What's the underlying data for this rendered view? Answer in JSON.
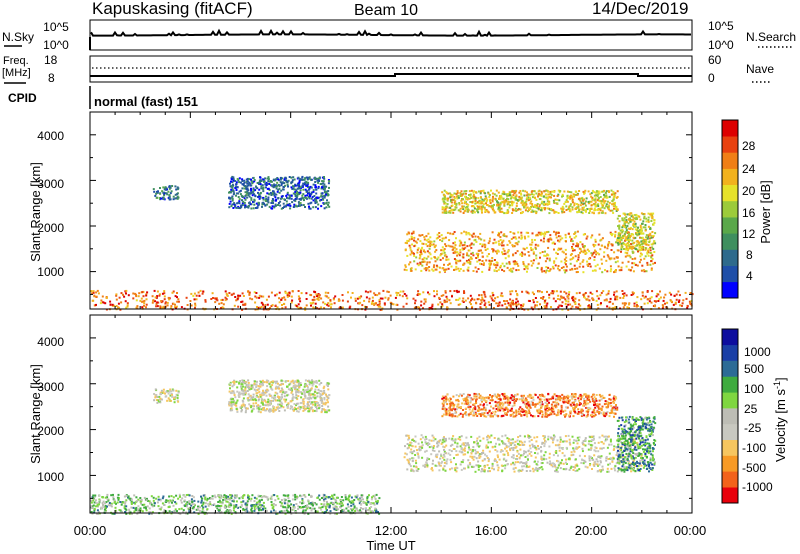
{
  "header": {
    "station": "Kapuskasing (fitACF)",
    "beam": "Beam 10",
    "date": "14/Dec/2019"
  },
  "strips": {
    "nsky_label": "N.Sky",
    "nsky_ticks": [
      "10^5",
      "10^0"
    ],
    "nsearch_label": "N.Search",
    "nsearch_ticks": [
      "10^5",
      "10^0"
    ],
    "freq_label": "Freq.",
    "freq_unit": "[MHz]",
    "freq_ticks": [
      "18",
      "8"
    ],
    "nave_label": "Nave",
    "nave_ticks": [
      "60",
      "0"
    ],
    "cpid_label": "CPID",
    "cpid_text": "normal (fast) 151"
  },
  "chart_data": [
    {
      "type": "heatmap",
      "panel": "power",
      "ylabel": "Slant Range [km]",
      "yticks": [
        "4000",
        "3000",
        "2000",
        "1000"
      ],
      "ylim": [
        180,
        4500
      ],
      "xlim": [
        0,
        24
      ],
      "colorbar_label": "Power [dB]",
      "colorbar_ticks": [
        "28",
        "24",
        "20",
        "16",
        "12",
        "8",
        "4"
      ],
      "colorbar_colors": [
        "#0000ff",
        "#1f4fa8",
        "#2e6a8c",
        "#3f8f5f",
        "#5aa84a",
        "#9ccb3a",
        "#e6e22a",
        "#f2b21e",
        "#f07f16",
        "#e8410f",
        "#dd0000"
      ],
      "regions": [
        {
          "t0": 0.0,
          "t1": 24.0,
          "r0": 180,
          "r1": 600,
          "level": 0.8
        },
        {
          "t0": 2.5,
          "t1": 3.5,
          "r0": 2600,
          "r1": 2900,
          "level": 0.25
        },
        {
          "t0": 5.5,
          "t1": 9.5,
          "r0": 2400,
          "r1": 3100,
          "level": 0.2
        },
        {
          "t0": 12.5,
          "t1": 22.5,
          "r0": 1000,
          "r1": 1900,
          "level": 0.7
        },
        {
          "t0": 14.0,
          "t1": 21.0,
          "r0": 2300,
          "r1": 2800,
          "level": 0.6
        },
        {
          "t0": 21.0,
          "t1": 22.5,
          "r0": 1500,
          "r1": 2300,
          "level": 0.55
        }
      ]
    },
    {
      "type": "heatmap",
      "panel": "velocity",
      "ylabel": "Slant Range [km]",
      "yticks": [
        "4000",
        "3000",
        "2000",
        "1000"
      ],
      "ylim": [
        180,
        4500
      ],
      "xlim": [
        0,
        24
      ],
      "xlabel": "Time UT",
      "xticks": [
        "00:00",
        "04:00",
        "08:00",
        "12:00",
        "16:00",
        "20:00",
        "00:00"
      ],
      "colorbar_label": "Velocity [m s",
      "colorbar_label_sup": "-1",
      "colorbar_label_end": "]",
      "colorbar_ticks": [
        "1000",
        "500",
        "100",
        "25",
        "-25",
        "-100",
        "-500",
        "-1000"
      ],
      "colorbar_colors": [
        "#e8000b",
        "#f3621a",
        "#f79a25",
        "#f6c65f",
        "#c8c8c0",
        "#bdbdb5",
        "#7fd640",
        "#3fab3f",
        "#2c6b96",
        "#1a3fa6",
        "#0d0d9e"
      ],
      "regions": [
        {
          "t0": 0.0,
          "t1": 11.5,
          "r0": 180,
          "r1": 600,
          "level": 0.6
        },
        {
          "t0": 2.5,
          "t1": 3.5,
          "r0": 2600,
          "r1": 2900,
          "level": 0.45
        },
        {
          "t0": 5.5,
          "t1": 9.5,
          "r0": 2400,
          "r1": 3100,
          "level": 0.45
        },
        {
          "t0": 12.5,
          "t1": 22.0,
          "r0": 1100,
          "r1": 1900,
          "level": 0.45
        },
        {
          "t0": 14.0,
          "t1": 21.0,
          "r0": 2300,
          "r1": 2800,
          "level": 0.22
        },
        {
          "t0": 21.0,
          "t1": 22.5,
          "r0": 1100,
          "r1": 2300,
          "level": 0.7
        }
      ]
    }
  ]
}
